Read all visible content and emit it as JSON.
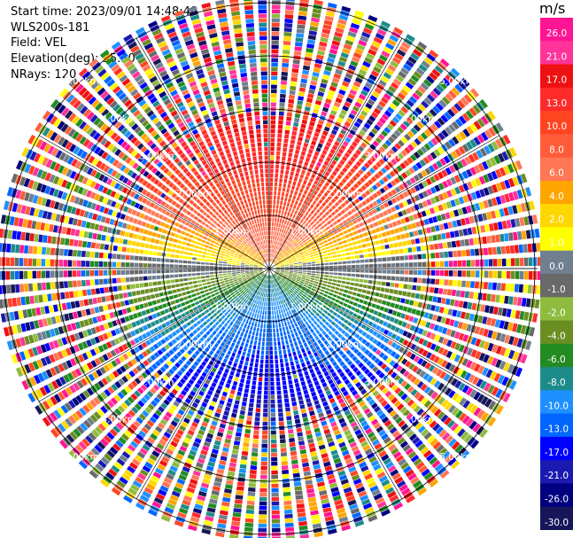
{
  "header": {
    "start_time": "Start time: 2023/09/01 14:48:48",
    "instrument": "WLS200s-181",
    "field": "Field: VEL",
    "elevation": "Elevation(deg): 35.30",
    "nrays": "NRays: 120"
  },
  "chart_data": {
    "type": "heatmap",
    "projection": "polar-ppi",
    "units": "m/s",
    "range_rings_km": [
      1.0,
      2.0,
      3.0,
      4.0,
      5.0
    ],
    "ring_labels": [
      "1.00km",
      "2.00km",
      "3.00km",
      "4.00km",
      "5.00km"
    ],
    "colorbar": {
      "ticks": [
        "26.0",
        "21.0",
        "17.0",
        "13.0",
        "10.0",
        "8.0",
        "6.0",
        "4.0",
        "2.0",
        "1.0",
        "0.0",
        "-1.0",
        "-2.0",
        "-4.0",
        "-6.0",
        "-8.0",
        "-10.0",
        "-13.0",
        "-17.0",
        "-21.0",
        "-26.0",
        "-30.0"
      ],
      "colors": [
        "#ff1493",
        "#ff3399",
        "#ee1111",
        "#ff2b2b",
        "#ff4422",
        "#ff5c3a",
        "#ff7755",
        "#ffa500",
        "#ffd700",
        "#ffff00",
        "#708090",
        "#696969",
        "#8fbc3f",
        "#6b8e23",
        "#228b22",
        "#1e8b8b",
        "#1e90ff",
        "#0066ff",
        "#0000ff",
        "#1a1ab0",
        "#000080",
        "#161658"
      ]
    },
    "nrays": 120,
    "elevation_deg": 35.3
  }
}
